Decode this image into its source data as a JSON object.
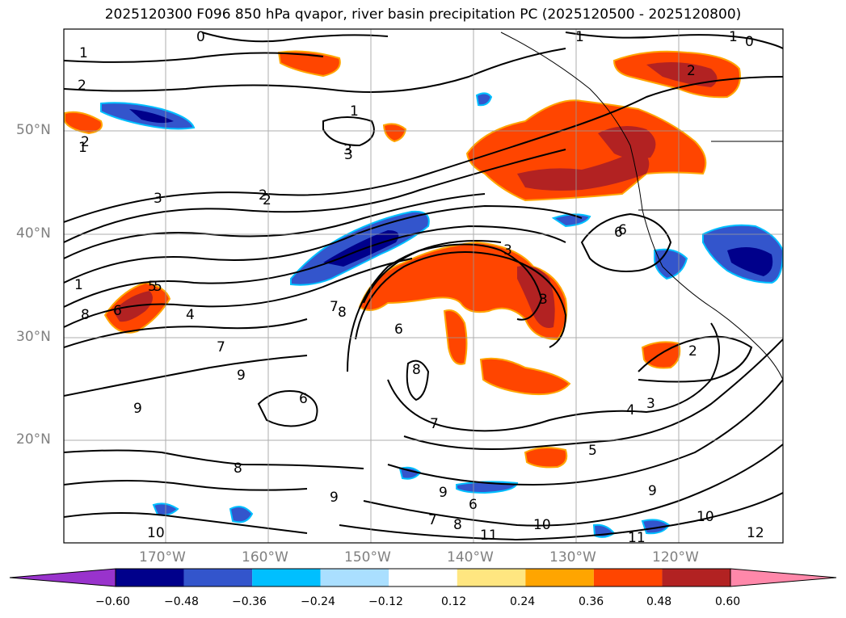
{
  "title": "2025120300 F096 850 hPa qvapor, river basin precipitation PC (2025120500 - 2025120800)",
  "lat_labels": [
    "50°N",
    "40°N",
    "30°N",
    "20°N"
  ],
  "lon_labels": [
    "170°W",
    "160°W",
    "150°W",
    "140°W",
    "130°W",
    "120°W"
  ],
  "contour_labels": [
    "0",
    "1",
    "2",
    "1",
    "1",
    "0",
    "2",
    "2",
    "3",
    "3",
    "2",
    "3",
    "3",
    "1",
    "5",
    "6",
    "8",
    "4",
    "7",
    "5",
    "6",
    "8",
    "6",
    "9",
    "7",
    "6",
    "9",
    "8",
    "9",
    "6",
    "7",
    "5",
    "4",
    "3",
    "2",
    "9",
    "10",
    "11",
    "10",
    "11",
    "12",
    "7",
    "8",
    "9",
    "8",
    "10",
    "6",
    "3",
    "2",
    "1",
    "1"
  ],
  "colorbar": {
    "ticks": [
      "−0.60",
      "−0.48",
      "−0.36",
      "−0.24",
      "−0.12",
      "0.12",
      "0.24",
      "0.36",
      "0.48",
      "0.60"
    ],
    "colors": [
      "#9933cc",
      "#00008b",
      "#3355cc",
      "#00bfff",
      "#aadfff",
      "#ffffff",
      "#ffe680",
      "#ffa500",
      "#ff4500",
      "#b22222",
      "#ff88aa"
    ]
  }
}
